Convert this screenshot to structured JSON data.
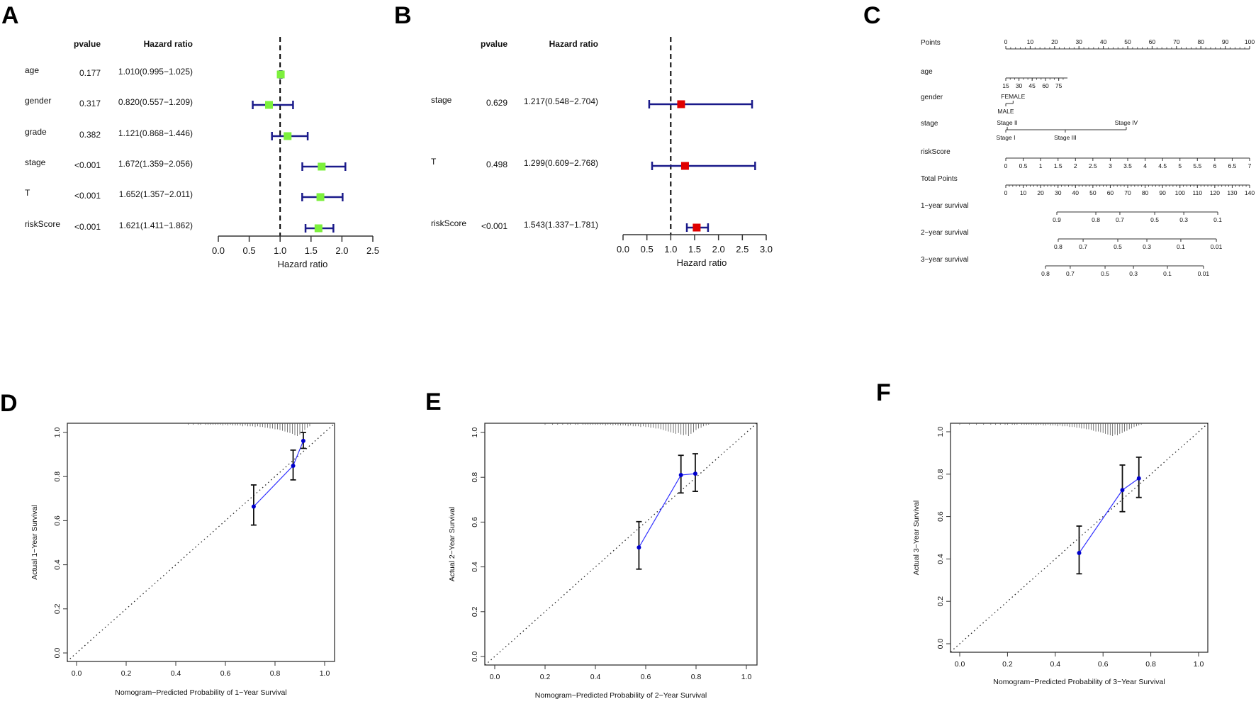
{
  "panels": {
    "a": "A",
    "b": "B",
    "c": "C",
    "d": "D",
    "e": "E",
    "f": "F"
  },
  "chart_data": [
    {
      "id": "A",
      "type": "forest",
      "headers": {
        "pvalue": "pvalue",
        "hr": "Hazard ratio"
      },
      "xlabel": "Hazard ratio",
      "xlim": [
        0,
        2.5
      ],
      "xticks": [
        "0.0",
        "0.5",
        "1.0",
        "1.5",
        "2.0",
        "2.5"
      ],
      "reference": 1.0,
      "marker_color": "#7cf03c",
      "bar_color": "#1a1a8a",
      "rows": [
        {
          "label": "age",
          "pvalue": "0.177",
          "hr_text": "1.010(0.995−1.025)",
          "hr": 1.01,
          "lo": 0.995,
          "hi": 1.025
        },
        {
          "label": "gender",
          "pvalue": "0.317",
          "hr_text": "0.820(0.557−1.209)",
          "hr": 0.82,
          "lo": 0.557,
          "hi": 1.209
        },
        {
          "label": "grade",
          "pvalue": "0.382",
          "hr_text": "1.121(0.868−1.446)",
          "hr": 1.121,
          "lo": 0.868,
          "hi": 1.446
        },
        {
          "label": "stage",
          "pvalue": "<0.001",
          "hr_text": "1.672(1.359−2.056)",
          "hr": 1.672,
          "lo": 1.359,
          "hi": 2.056
        },
        {
          "label": "T",
          "pvalue": "<0.001",
          "hr_text": "1.652(1.357−2.011)",
          "hr": 1.652,
          "lo": 1.357,
          "hi": 2.011
        },
        {
          "label": "riskScore",
          "pvalue": "<0.001",
          "hr_text": "1.621(1.411−1.862)",
          "hr": 1.621,
          "lo": 1.411,
          "hi": 1.862
        }
      ]
    },
    {
      "id": "B",
      "type": "forest",
      "headers": {
        "pvalue": "pvalue",
        "hr": "Hazard ratio"
      },
      "xlabel": "Hazard ratio",
      "xlim": [
        0,
        3.0
      ],
      "xticks": [
        "0.0",
        "0.5",
        "1.0",
        "1.5",
        "2.0",
        "2.5",
        "3.0"
      ],
      "reference": 1.0,
      "marker_color": "#e00000",
      "bar_color": "#1a1a8a",
      "rows": [
        {
          "label": "stage",
          "pvalue": "0.629",
          "hr_text": "1.217(0.548−2.704)",
          "hr": 1.217,
          "lo": 0.548,
          "hi": 2.704
        },
        {
          "label": "T",
          "pvalue": "0.498",
          "hr_text": "1.299(0.609−2.768)",
          "hr": 1.299,
          "lo": 0.609,
          "hi": 2.768
        },
        {
          "label": "riskScore",
          "pvalue": "<0.001",
          "hr_text": "1.543(1.337−1.781)",
          "hr": 1.543,
          "lo": 1.337,
          "hi": 1.781
        }
      ]
    },
    {
      "id": "C",
      "type": "nomogram",
      "points_range": [
        0,
        100
      ],
      "total_points_range": [
        0,
        140
      ],
      "rows": [
        {
          "label": "Points",
          "scale": "points",
          "side": "above",
          "line": [
            0,
            100
          ],
          "minor_step": 2,
          "ticks": [
            {
              "t": "0",
              "p": 0
            },
            {
              "t": "10",
              "p": 10
            },
            {
              "t": "20",
              "p": 20
            },
            {
              "t": "30",
              "p": 30
            },
            {
              "t": "40",
              "p": 40
            },
            {
              "t": "50",
              "p": 50
            },
            {
              "t": "60",
              "p": 60
            },
            {
              "t": "70",
              "p": 70
            },
            {
              "t": "80",
              "p": 80
            },
            {
              "t": "90",
              "p": 90
            },
            {
              "t": "100",
              "p": 100
            }
          ]
        },
        {
          "label": "age",
          "scale": "points",
          "side": "below",
          "line": [
            0,
            25.3
          ],
          "minor_step": 1.81,
          "ticks": [
            {
              "t": "15",
              "p": 0
            },
            {
              "t": "30",
              "p": 5.4
            },
            {
              "t": "45",
              "p": 10.8
            },
            {
              "t": "60",
              "p": 16.3
            },
            {
              "t": "75",
              "p": 21.7
            }
          ]
        },
        {
          "label": "gender",
          "scale": "points",
          "side": "mixed",
          "line": [
            0,
            3
          ],
          "ticks": [
            {
              "t": "FEMALE",
              "p": 3,
              "pos": "above"
            },
            {
              "t": "MALE",
              "p": 0,
              "pos": "below"
            }
          ]
        },
        {
          "label": "stage",
          "scale": "points",
          "side": "mixed",
          "line": [
            0,
            49.4
          ],
          "ticks": [
            {
              "t": "Stage II",
              "p": 0.6,
              "pos": "above"
            },
            {
              "t": "Stage IV",
              "p": 49.4,
              "pos": "above"
            },
            {
              "t": "Stage I",
              "p": 0,
              "pos": "below"
            },
            {
              "t": "Stage III",
              "p": 24.4,
              "pos": "below"
            }
          ]
        },
        {
          "label": "riskScore",
          "scale": "points",
          "side": "below",
          "line": [
            0,
            100
          ],
          "ticks": [
            {
              "t": "0",
              "p": 0
            },
            {
              "t": "0.5",
              "p": 7.14
            },
            {
              "t": "1",
              "p": 14.29
            },
            {
              "t": "1.5",
              "p": 21.43
            },
            {
              "t": "2",
              "p": 28.57
            },
            {
              "t": "2.5",
              "p": 35.71
            },
            {
              "t": "3",
              "p": 42.86
            },
            {
              "t": "3.5",
              "p": 50
            },
            {
              "t": "4",
              "p": 57.14
            },
            {
              "t": "4.5",
              "p": 64.29
            },
            {
              "t": "5",
              "p": 71.43
            },
            {
              "t": "5.5",
              "p": 78.57
            },
            {
              "t": "6",
              "p": 85.71
            },
            {
              "t": "6.5",
              "p": 92.86
            },
            {
              "t": "7",
              "p": 100
            }
          ]
        },
        {
          "label": "Total Points",
          "scale": "total",
          "side": "below",
          "line": [
            0,
            140
          ],
          "minor_step": 2,
          "ticks": [
            {
              "t": "0",
              "p": 0
            },
            {
              "t": "10",
              "p": 10
            },
            {
              "t": "20",
              "p": 20
            },
            {
              "t": "30",
              "p": 30
            },
            {
              "t": "40",
              "p": 40
            },
            {
              "t": "50",
              "p": 50
            },
            {
              "t": "60",
              "p": 60
            },
            {
              "t": "70",
              "p": 70
            },
            {
              "t": "80",
              "p": 80
            },
            {
              "t": "90",
              "p": 90
            },
            {
              "t": "100",
              "p": 100
            },
            {
              "t": "110",
              "p": 110
            },
            {
              "t": "120",
              "p": 120
            },
            {
              "t": "130",
              "p": 130
            },
            {
              "t": "140",
              "p": 140
            }
          ]
        },
        {
          "label": "1−year survival",
          "scale": "total",
          "side": "below",
          "line": [
            29.3,
            121.7
          ],
          "ticks": [
            {
              "t": "0.9",
              "p": 29.3
            },
            {
              "t": "0.8",
              "p": 51.7
            },
            {
              "t": "0.7",
              "p": 65.5
            },
            {
              "t": "0.5",
              "p": 85.5
            },
            {
              "t": "0.3",
              "p": 102.2
            },
            {
              "t": "0.1",
              "p": 121.7
            }
          ]
        },
        {
          "label": "2−year survival",
          "scale": "total",
          "side": "below",
          "line": [
            30.1,
            120.9
          ],
          "ticks": [
            {
              "t": "0.8",
              "p": 30.1
            },
            {
              "t": "0.7",
              "p": 44.4
            },
            {
              "t": "0.5",
              "p": 64.3
            },
            {
              "t": "0.3",
              "p": 81
            },
            {
              "t": "0.1",
              "p": 100.5
            },
            {
              "t": "0.01",
              "p": 120.9
            }
          ]
        },
        {
          "label": "3−year survival",
          "scale": "total",
          "side": "below",
          "line": [
            22.8,
            113.5
          ],
          "ticks": [
            {
              "t": "0.8",
              "p": 22.8
            },
            {
              "t": "0.7",
              "p": 37
            },
            {
              "t": "0.5",
              "p": 57
            },
            {
              "t": "0.3",
              "p": 73.3
            },
            {
              "t": "0.1",
              "p": 92.8
            },
            {
              "t": "0.01",
              "p": 113.5
            }
          ]
        }
      ]
    },
    {
      "id": "D",
      "type": "scatter",
      "xlabel": "Nomogram−Predicted Probability of 1−Year Survival",
      "ylabel": "Actual 1−Year Survival",
      "xlim": [
        0,
        1
      ],
      "ylim": [
        0,
        1
      ],
      "xticks": [
        "0.0",
        "0.2",
        "0.4",
        "0.6",
        "0.8",
        "1.0"
      ],
      "yticks": [
        "0.0",
        "0.2",
        "0.4",
        "0.6",
        "0.8",
        "1.0"
      ],
      "points": [
        {
          "x": 0.714,
          "y": 0.664,
          "lo": 0.58,
          "hi": 0.762
        },
        {
          "x": 0.873,
          "y": 0.849,
          "lo": 0.785,
          "hi": 0.92
        },
        {
          "x": 0.914,
          "y": 0.962,
          "lo": 0.928,
          "hi": 1.0
        }
      ],
      "histogram": {
        "start": 0.45,
        "step": 0.01,
        "counts": [
          1,
          0,
          1,
          0,
          1,
          1,
          0,
          1,
          1,
          1,
          1,
          1,
          1,
          1,
          2,
          1,
          2,
          1,
          2,
          2,
          2,
          2,
          3,
          2,
          3,
          3,
          3,
          4,
          3,
          4,
          4,
          5,
          5,
          6,
          6,
          7,
          7,
          8,
          9,
          10,
          11,
          12,
          13,
          15,
          16,
          14,
          12,
          8,
          5,
          3
        ]
      }
    },
    {
      "id": "E",
      "type": "scatter",
      "xlabel": "Nomogram−Predicted Probability of 2−Year Survival",
      "ylabel": "Actual 2−Year Survival",
      "xlim": [
        0,
        1
      ],
      "ylim": [
        0,
        1
      ],
      "xticks": [
        "0.0",
        "0.2",
        "0.4",
        "0.6",
        "0.8",
        "1.0"
      ],
      "yticks": [
        "0.0",
        "0.2",
        "0.4",
        "0.6",
        "0.8",
        "1.0"
      ],
      "points": [
        {
          "x": 0.573,
          "y": 0.487,
          "lo": 0.39,
          "hi": 0.602
        },
        {
          "x": 0.74,
          "y": 0.81,
          "lo": 0.73,
          "hi": 0.898
        },
        {
          "x": 0.797,
          "y": 0.816,
          "lo": 0.737,
          "hi": 0.905
        }
      ],
      "histogram": {
        "start": 0.2,
        "step": 0.01,
        "counts": [
          1,
          0,
          0,
          1,
          0,
          1,
          0,
          1,
          0,
          1,
          1,
          0,
          1,
          1,
          0,
          1,
          1,
          1,
          1,
          1,
          1,
          1,
          1,
          1,
          2,
          1,
          1,
          2,
          1,
          2,
          2,
          2,
          2,
          3,
          2,
          3,
          3,
          3,
          4,
          3,
          4,
          4,
          5,
          5,
          6,
          6,
          7,
          8,
          9,
          10,
          11,
          12,
          13,
          12,
          14,
          15,
          14,
          16,
          13,
          11,
          8,
          6,
          5,
          3,
          2,
          1
        ]
      }
    },
    {
      "id": "F",
      "type": "scatter",
      "xlabel": "Nomogram−Predicted Probability of 3−Year Survival",
      "ylabel": "Actual 3−Year Survival",
      "xlim": [
        0,
        1
      ],
      "ylim": [
        0,
        1
      ],
      "xticks": [
        "0.0",
        "0.2",
        "0.4",
        "0.6",
        "0.8",
        "1.0"
      ],
      "yticks": [
        "0.0",
        "0.2",
        "0.4",
        "0.6",
        "0.8",
        "1.0"
      ],
      "points": [
        {
          "x": 0.5,
          "y": 0.428,
          "lo": 0.33,
          "hi": 0.555
        },
        {
          "x": 0.681,
          "y": 0.725,
          "lo": 0.623,
          "hi": 0.843
        },
        {
          "x": 0.75,
          "y": 0.78,
          "lo": 0.69,
          "hi": 0.88
        }
      ],
      "histogram": {
        "start": 0.0,
        "step": 0.01,
        "counts": [
          1,
          0,
          0,
          0,
          1,
          0,
          0,
          1,
          0,
          0,
          1,
          0,
          0,
          1,
          0,
          1,
          0,
          1,
          0,
          1,
          1,
          0,
          1,
          1,
          1,
          0,
          1,
          1,
          1,
          1,
          1,
          1,
          2,
          1,
          1,
          2,
          2,
          1,
          2,
          2,
          2,
          3,
          2,
          3,
          3,
          3,
          4,
          4,
          4,
          5,
          5,
          6,
          6,
          7,
          7,
          8,
          9,
          10,
          10,
          11,
          12,
          13,
          14,
          15,
          16,
          14,
          15,
          13,
          12,
          10,
          9,
          7,
          6,
          4,
          3,
          2,
          1
        ]
      }
    }
  ]
}
